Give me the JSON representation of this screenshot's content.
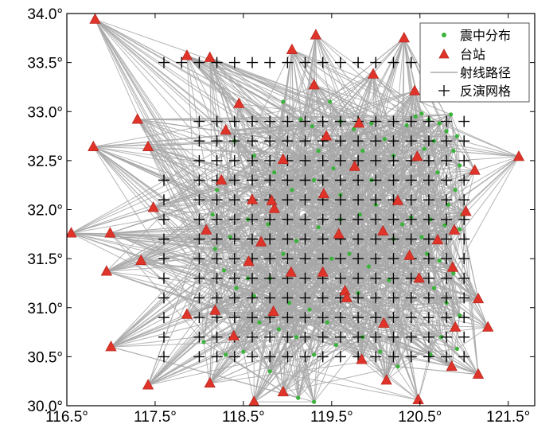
{
  "chart_data": {
    "type": "scatter",
    "title": "",
    "xlabel": "",
    "ylabel": "",
    "xlim": [
      116.5,
      121.8
    ],
    "ylim": [
      30.0,
      34.0
    ],
    "xticks": [
      116.5,
      117.5,
      118.5,
      119.5,
      120.5,
      121.5
    ],
    "yticks": [
      30.0,
      30.5,
      31.0,
      31.5,
      32.0,
      32.5,
      33.0,
      33.5,
      34.0
    ],
    "xtick_labels": [
      "116.5°",
      "117.5°",
      "118.5°",
      "119.5°",
      "120.5°",
      "121.5°"
    ],
    "ytick_labels": [
      "30.0°",
      "30.5°",
      "31.0°",
      "31.5°",
      "32.0°",
      "32.5°",
      "33.0°",
      "33.5°",
      "34.0°"
    ],
    "legend": {
      "placement": "top-right",
      "entries": [
        {
          "key": "epicenters",
          "label": "震中分布",
          "marker": "dot",
          "color": "#3bb33b"
        },
        {
          "key": "stations",
          "label": "台站",
          "marker": "triangle",
          "color": "#e0342a"
        },
        {
          "key": "rays",
          "label": "射线路径",
          "marker": "line",
          "color": "#a8a8a8"
        },
        {
          "key": "grid",
          "label": "反演网格",
          "marker": "plus",
          "color": "#000000"
        }
      ]
    },
    "colors": {
      "ray": "#a8a8a8",
      "station": "#e0342a",
      "station_edge": "#b8281f",
      "epicenter": "#3bb33b",
      "grid": "#000000"
    },
    "stations": [
      [
        116.82,
        33.94
      ],
      [
        117.86,
        33.57
      ],
      [
        118.12,
        33.55
      ],
      [
        119.05,
        33.63
      ],
      [
        119.32,
        33.78
      ],
      [
        120.32,
        33.75
      ],
      [
        119.97,
        33.38
      ],
      [
        120.44,
        33.21
      ],
      [
        119.3,
        33.27
      ],
      [
        118.45,
        33.08
      ],
      [
        117.3,
        32.92
      ],
      [
        118.3,
        32.81
      ],
      [
        116.8,
        32.64
      ],
      [
        117.42,
        32.64
      ],
      [
        119.44,
        32.75
      ],
      [
        119.81,
        32.88
      ],
      [
        120.47,
        32.54
      ],
      [
        118.95,
        32.51
      ],
      [
        119.76,
        32.44
      ],
      [
        121.12,
        32.4
      ],
      [
        121.62,
        32.54
      ],
      [
        118.25,
        32.3
      ],
      [
        118.6,
        32.1
      ],
      [
        118.82,
        32.09
      ],
      [
        118.85,
        32.01
      ],
      [
        119.41,
        32.16
      ],
      [
        120.25,
        32.09
      ],
      [
        121.02,
        31.98
      ],
      [
        117.48,
        32.02
      ],
      [
        118.08,
        31.79
      ],
      [
        120.08,
        31.78
      ],
      [
        116.55,
        31.76
      ],
      [
        116.99,
        31.76
      ],
      [
        119.58,
        31.75
      ],
      [
        120.7,
        31.69
      ],
      [
        118.7,
        31.67
      ],
      [
        120.89,
        31.79
      ],
      [
        117.34,
        31.48
      ],
      [
        118.56,
        31.47
      ],
      [
        119.04,
        31.36
      ],
      [
        119.4,
        31.36
      ],
      [
        120.38,
        31.53
      ],
      [
        120.87,
        31.41
      ],
      [
        116.95,
        31.37
      ],
      [
        120.49,
        31.3
      ],
      [
        119.65,
        31.17
      ],
      [
        119.67,
        31.1
      ],
      [
        121.16,
        31.09
      ],
      [
        117.86,
        30.93
      ],
      [
        118.18,
        30.97
      ],
      [
        118.84,
        30.96
      ],
      [
        121.27,
        30.8
      ],
      [
        120.9,
        30.8
      ],
      [
        120.09,
        30.84
      ],
      [
        117.0,
        30.6
      ],
      [
        118.39,
        30.71
      ],
      [
        119.84,
        30.47
      ],
      [
        120.86,
        30.4
      ],
      [
        121.16,
        30.32
      ],
      [
        120.12,
        30.26
      ],
      [
        117.42,
        30.21
      ],
      [
        118.12,
        30.23
      ],
      [
        118.62,
        30.04
      ],
      [
        118.95,
        30.14
      ],
      [
        120.48,
        30.06
      ]
    ],
    "epicenters": [
      [
        120.45,
        32.95
      ],
      [
        120.52,
        32.98
      ],
      [
        120.85,
        32.97
      ],
      [
        120.6,
        32.92
      ],
      [
        120.72,
        32.88
      ],
      [
        120.8,
        32.8
      ],
      [
        120.35,
        32.86
      ],
      [
        120.92,
        32.75
      ],
      [
        120.66,
        32.7
      ],
      [
        120.55,
        32.62
      ],
      [
        120.88,
        32.6
      ],
      [
        120.95,
        32.45
      ],
      [
        120.7,
        32.38
      ],
      [
        120.9,
        32.2
      ],
      [
        120.82,
        32.05
      ],
      [
        120.98,
        31.95
      ],
      [
        120.62,
        31.9
      ],
      [
        120.78,
        31.84
      ],
      [
        120.95,
        31.8
      ],
      [
        120.52,
        31.72
      ],
      [
        120.4,
        31.92
      ],
      [
        120.3,
        31.85
      ],
      [
        120.2,
        31.7
      ],
      [
        120.58,
        31.55
      ],
      [
        120.72,
        31.48
      ],
      [
        120.88,
        31.35
      ],
      [
        120.66,
        31.2
      ],
      [
        120.8,
        31.05
      ],
      [
        120.95,
        30.92
      ],
      [
        120.74,
        30.7
      ],
      [
        120.92,
        30.58
      ],
      [
        120.62,
        30.52
      ],
      [
        119.15,
        32.92
      ],
      [
        119.28,
        32.85
      ],
      [
        119.6,
        32.9
      ],
      [
        119.75,
        32.82
      ],
      [
        119.95,
        32.88
      ],
      [
        120.1,
        32.72
      ],
      [
        120.2,
        32.55
      ],
      [
        119.85,
        32.6
      ],
      [
        119.52,
        32.42
      ],
      [
        119.3,
        32.3
      ],
      [
        119.6,
        32.15
      ],
      [
        120.0,
        32.05
      ],
      [
        119.82,
        31.95
      ],
      [
        119.6,
        31.9
      ],
      [
        119.35,
        31.82
      ],
      [
        119.1,
        31.68
      ],
      [
        118.95,
        31.55
      ],
      [
        118.78,
        31.85
      ],
      [
        118.55,
        31.9
      ],
      [
        118.35,
        31.72
      ],
      [
        118.18,
        31.6
      ],
      [
        118.28,
        31.38
      ],
      [
        118.42,
        31.2
      ],
      [
        118.62,
        31.12
      ],
      [
        118.8,
        31.3
      ],
      [
        119.02,
        31.05
      ],
      [
        119.25,
        30.98
      ],
      [
        119.45,
        30.85
      ],
      [
        118.68,
        30.85
      ],
      [
        118.9,
        30.78
      ],
      [
        119.1,
        30.7
      ],
      [
        118.5,
        30.55
      ],
      [
        118.3,
        30.52
      ],
      [
        118.05,
        30.65
      ],
      [
        119.3,
        30.52
      ],
      [
        119.55,
        30.62
      ],
      [
        119.85,
        30.7
      ],
      [
        120.05,
        30.55
      ],
      [
        120.25,
        30.4
      ],
      [
        118.8,
        30.35
      ],
      [
        119.12,
        30.08
      ],
      [
        119.3,
        30.04
      ],
      [
        118.4,
        32.7
      ],
      [
        118.62,
        32.55
      ],
      [
        118.85,
        32.38
      ],
      [
        118.2,
        32.2
      ],
      [
        118.15,
        31.95
      ],
      [
        119.05,
        32.2
      ],
      [
        119.7,
        31.55
      ],
      [
        119.92,
        31.42
      ],
      [
        120.15,
        31.28
      ],
      [
        119.8,
        31.15
      ],
      [
        119.5,
        31.5
      ],
      [
        118.55,
        31.3
      ],
      [
        119.35,
        32.6
      ],
      [
        119.95,
        32.3
      ],
      [
        118.95,
        33.1
      ],
      [
        119.48,
        33.1
      ]
    ]
  }
}
